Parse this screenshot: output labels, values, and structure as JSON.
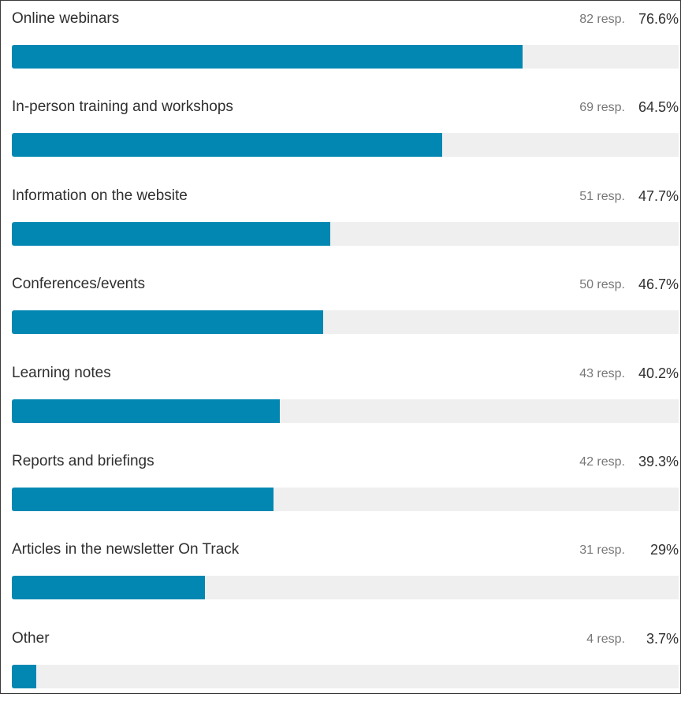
{
  "chart_data": {
    "type": "bar",
    "orientation": "horizontal",
    "categories": [
      "Online webinars",
      "In-person training and workshops",
      "Information on the website",
      "Conferences/events",
      "Learning notes",
      "Reports and briefings",
      "Articles in the newsletter On Track",
      "Other"
    ],
    "responses": [
      82,
      69,
      51,
      50,
      43,
      42,
      31,
      4
    ],
    "values": [
      76.6,
      64.5,
      47.7,
      46.7,
      40.2,
      39.3,
      29,
      3.7
    ],
    "response_labels": [
      "82 resp.",
      "69 resp.",
      "51 resp.",
      "50 resp.",
      "43 resp.",
      "42 resp.",
      "31 resp.",
      "4 resp."
    ],
    "percent_labels": [
      "76.6%",
      "64.5%",
      "47.7%",
      "46.7%",
      "40.2%",
      "39.3%",
      "29%",
      "3.7%"
    ],
    "xlim": [
      0,
      100
    ],
    "title": "",
    "xlabel": "",
    "ylabel": "",
    "colors": {
      "bar": "#0287b2",
      "track": "#efefef"
    }
  }
}
